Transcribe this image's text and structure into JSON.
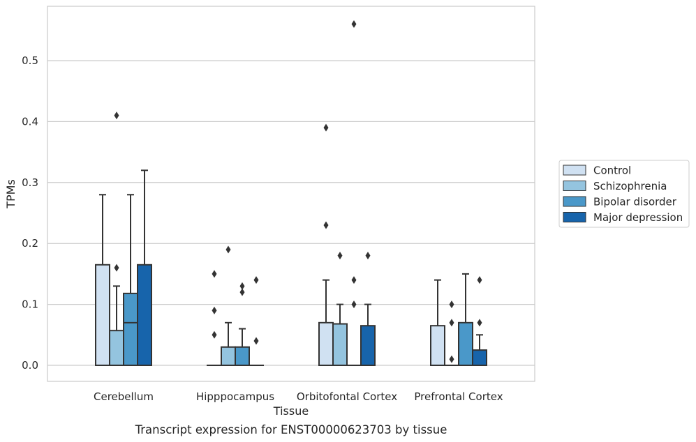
{
  "chart_data": {
    "type": "box",
    "title": "",
    "caption": "Transcript expression for ENST00000623703 by tissue",
    "xlabel": "Tissue",
    "ylabel": "TPMs",
    "ylim": [
      -0.027,
      0.59
    ],
    "yticks": [
      0.0,
      0.1,
      0.2,
      0.3,
      0.4,
      0.5
    ],
    "ytick_labels": [
      "0.0",
      "0.1",
      "0.2",
      "0.3",
      "0.4",
      "0.5"
    ],
    "grid": "horizontal",
    "legend_position": "right",
    "categories": [
      "Cerebellum",
      "Hipppocampus",
      "Orbitofontal Cortex",
      "Prefrontal Cortex"
    ],
    "series": [
      {
        "name": "Control",
        "color": "#d0e1f2",
        "boxes": [
          {
            "q1": 0.0,
            "median": 0.0,
            "q3": 0.165,
            "whisker_low": 0.0,
            "whisker_high": 0.28,
            "outliers": []
          },
          {
            "q1": 0.0,
            "median": 0.0,
            "q3": 0.0,
            "whisker_low": 0.0,
            "whisker_high": 0.0,
            "outliers": [
              0.05,
              0.09,
              0.15
            ]
          },
          {
            "q1": 0.0,
            "median": 0.0,
            "q3": 0.07,
            "whisker_low": 0.0,
            "whisker_high": 0.14,
            "outliers": [
              0.23,
              0.39
            ]
          },
          {
            "q1": 0.0,
            "median": 0.0,
            "q3": 0.065,
            "whisker_low": 0.0,
            "whisker_high": 0.14,
            "outliers": []
          }
        ]
      },
      {
        "name": "Schizophrenia",
        "color": "#94c4df",
        "boxes": [
          {
            "q1": 0.0,
            "median": 0.0,
            "q3": 0.057,
            "whisker_low": 0.0,
            "whisker_high": 0.13,
            "outliers": [
              0.16,
              0.41
            ]
          },
          {
            "q1": 0.0,
            "median": 0.0,
            "q3": 0.03,
            "whisker_low": 0.0,
            "whisker_high": 0.07,
            "outliers": [
              0.19
            ]
          },
          {
            "q1": 0.0,
            "median": 0.0,
            "q3": 0.068,
            "whisker_low": 0.0,
            "whisker_high": 0.1,
            "outliers": [
              0.18
            ]
          },
          {
            "q1": 0.0,
            "median": 0.0,
            "q3": 0.0,
            "whisker_low": 0.0,
            "whisker_high": 0.0,
            "outliers": [
              0.01,
              0.07,
              0.1
            ]
          }
        ]
      },
      {
        "name": "Bipolar disorder",
        "color": "#4a98c9",
        "boxes": [
          {
            "q1": 0.0,
            "median": 0.07,
            "q3": 0.118,
            "whisker_low": 0.0,
            "whisker_high": 0.28,
            "outliers": []
          },
          {
            "q1": 0.0,
            "median": 0.0,
            "q3": 0.03,
            "whisker_low": 0.0,
            "whisker_high": 0.06,
            "outliers": [
              0.12,
              0.13
            ]
          },
          {
            "q1": 0.0,
            "median": 0.0,
            "q3": 0.0,
            "whisker_low": 0.0,
            "whisker_high": 0.0,
            "outliers": [
              0.1,
              0.14,
              0.56
            ]
          },
          {
            "q1": 0.0,
            "median": 0.0,
            "q3": 0.07,
            "whisker_low": 0.0,
            "whisker_high": 0.15,
            "outliers": []
          }
        ]
      },
      {
        "name": "Major depression",
        "color": "#1764ab",
        "boxes": [
          {
            "q1": 0.0,
            "median": 0.0,
            "q3": 0.165,
            "whisker_low": 0.0,
            "whisker_high": 0.32,
            "outliers": []
          },
          {
            "q1": 0.0,
            "median": 0.0,
            "q3": 0.0,
            "whisker_low": 0.0,
            "whisker_high": 0.0,
            "outliers": [
              0.04,
              0.14
            ]
          },
          {
            "q1": 0.0,
            "median": 0.0,
            "q3": 0.065,
            "whisker_low": 0.0,
            "whisker_high": 0.1,
            "outliers": [
              0.18
            ]
          },
          {
            "q1": 0.0,
            "median": 0.0,
            "q3": 0.025,
            "whisker_low": 0.0,
            "whisker_high": 0.05,
            "outliers": [
              0.07,
              0.14
            ]
          }
        ]
      }
    ]
  }
}
